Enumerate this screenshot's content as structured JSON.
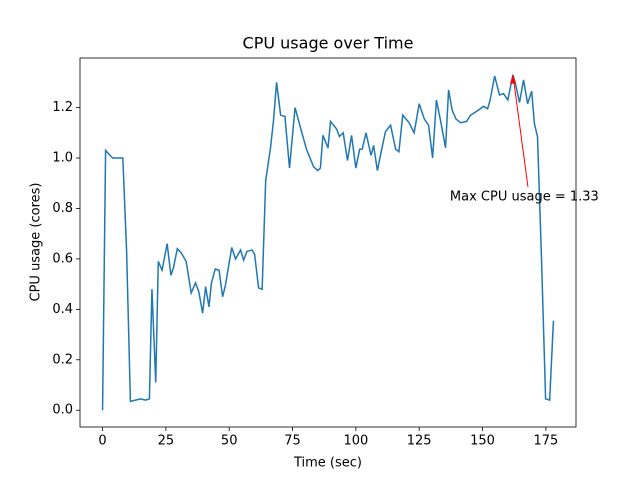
{
  "chart_data": {
    "type": "line",
    "title": "CPU usage over Time",
    "x_label": "Time (sec)",
    "y_label": "CPU usage (cores)",
    "color": "#1f77b4",
    "x": [
      0,
      1.2,
      3,
      4,
      6,
      8,
      9.5,
      11,
      15,
      17,
      18.5,
      19.5,
      21,
      22,
      23.5,
      25.5,
      27,
      28,
      29.5,
      31,
      33,
      35,
      36.7,
      38,
      39.5,
      40.7,
      42,
      43,
      44.5,
      46,
      47.4,
      48.5,
      51,
      52.5,
      54.5,
      55.7,
      57,
      59,
      60,
      61.6,
      63,
      64.4,
      66.3,
      67.5,
      68.7,
      70.3,
      72,
      73.8,
      76,
      78,
      80.5,
      83.3,
      85,
      86,
      87,
      89,
      90,
      92.4,
      93.5,
      95,
      96.7,
      98.3,
      100,
      101.5,
      102.5,
      104,
      106,
      107,
      108.5,
      110,
      111.7,
      113.7,
      115.7,
      117,
      118.5,
      121,
      123,
      125,
      127,
      128.7,
      130.3,
      131.8,
      133.4,
      135.4,
      136.6,
      138,
      139.5,
      141.3,
      143.7,
      145.3,
      148.4,
      150.4,
      152,
      153,
      154.8,
      156.7,
      158.3,
      160,
      162,
      163,
      164.6,
      166.2,
      167.8,
      169.4,
      170.5,
      171.7,
      173.3,
      174.9,
      176.5,
      178
    ],
    "values": [
      0,
      1.03,
      1.01,
      1.0,
      1.0,
      1.0,
      0.63,
      0.035,
      0.045,
      0.04,
      0.045,
      0.48,
      0.11,
      0.59,
      0.555,
      0.66,
      0.535,
      0.565,
      0.64,
      0.625,
      0.59,
      0.465,
      0.505,
      0.47,
      0.385,
      0.49,
      0.41,
      0.505,
      0.56,
      0.555,
      0.45,
      0.495,
      0.645,
      0.6,
      0.635,
      0.595,
      0.63,
      0.635,
      0.62,
      0.485,
      0.48,
      0.91,
      1.04,
      1.15,
      1.3,
      1.17,
      1.165,
      0.96,
      1.2,
      1.125,
      1.035,
      0.965,
      0.95,
      0.96,
      1.09,
      1.04,
      1.145,
      1.115,
      1.085,
      1.1,
      0.99,
      1.09,
      0.96,
      1.035,
      1.035,
      1.1,
      1.01,
      1.05,
      0.95,
      1.025,
      1.105,
      1.13,
      1.035,
      1.025,
      1.17,
      1.14,
      1.1,
      1.215,
      1.155,
      1.13,
      1.0,
      1.23,
      1.15,
      1.04,
      1.27,
      1.19,
      1.155,
      1.14,
      1.145,
      1.17,
      1.19,
      1.205,
      1.195,
      1.23,
      1.325,
      1.25,
      1.255,
      1.23,
      1.33,
      1.295,
      1.22,
      1.31,
      1.215,
      1.265,
      1.135,
      1.085,
      0.595,
      0.045,
      0.04,
      0.355
    ],
    "xlim": [
      -8.9,
      186.9
    ],
    "ylim": [
      -0.0665,
      1.3965
    ],
    "xticks": [
      0,
      25,
      50,
      75,
      100,
      125,
      150,
      175
    ],
    "yticks": [
      {
        "value": 0,
        "label": "0.0"
      },
      {
        "value": 0.2,
        "label": "0.2"
      },
      {
        "value": 0.4,
        "label": "0.4"
      },
      {
        "value": 0.6,
        "label": "0.6"
      },
      {
        "value": 0.8,
        "label": "0.8"
      },
      {
        "value": 1.0,
        "label": "1.0"
      },
      {
        "value": 1.2,
        "label": "1.2"
      }
    ],
    "annotation": {
      "text": "Max CPU usage = 1.33",
      "x": 162,
      "y": 1.33,
      "color": "red"
    }
  }
}
